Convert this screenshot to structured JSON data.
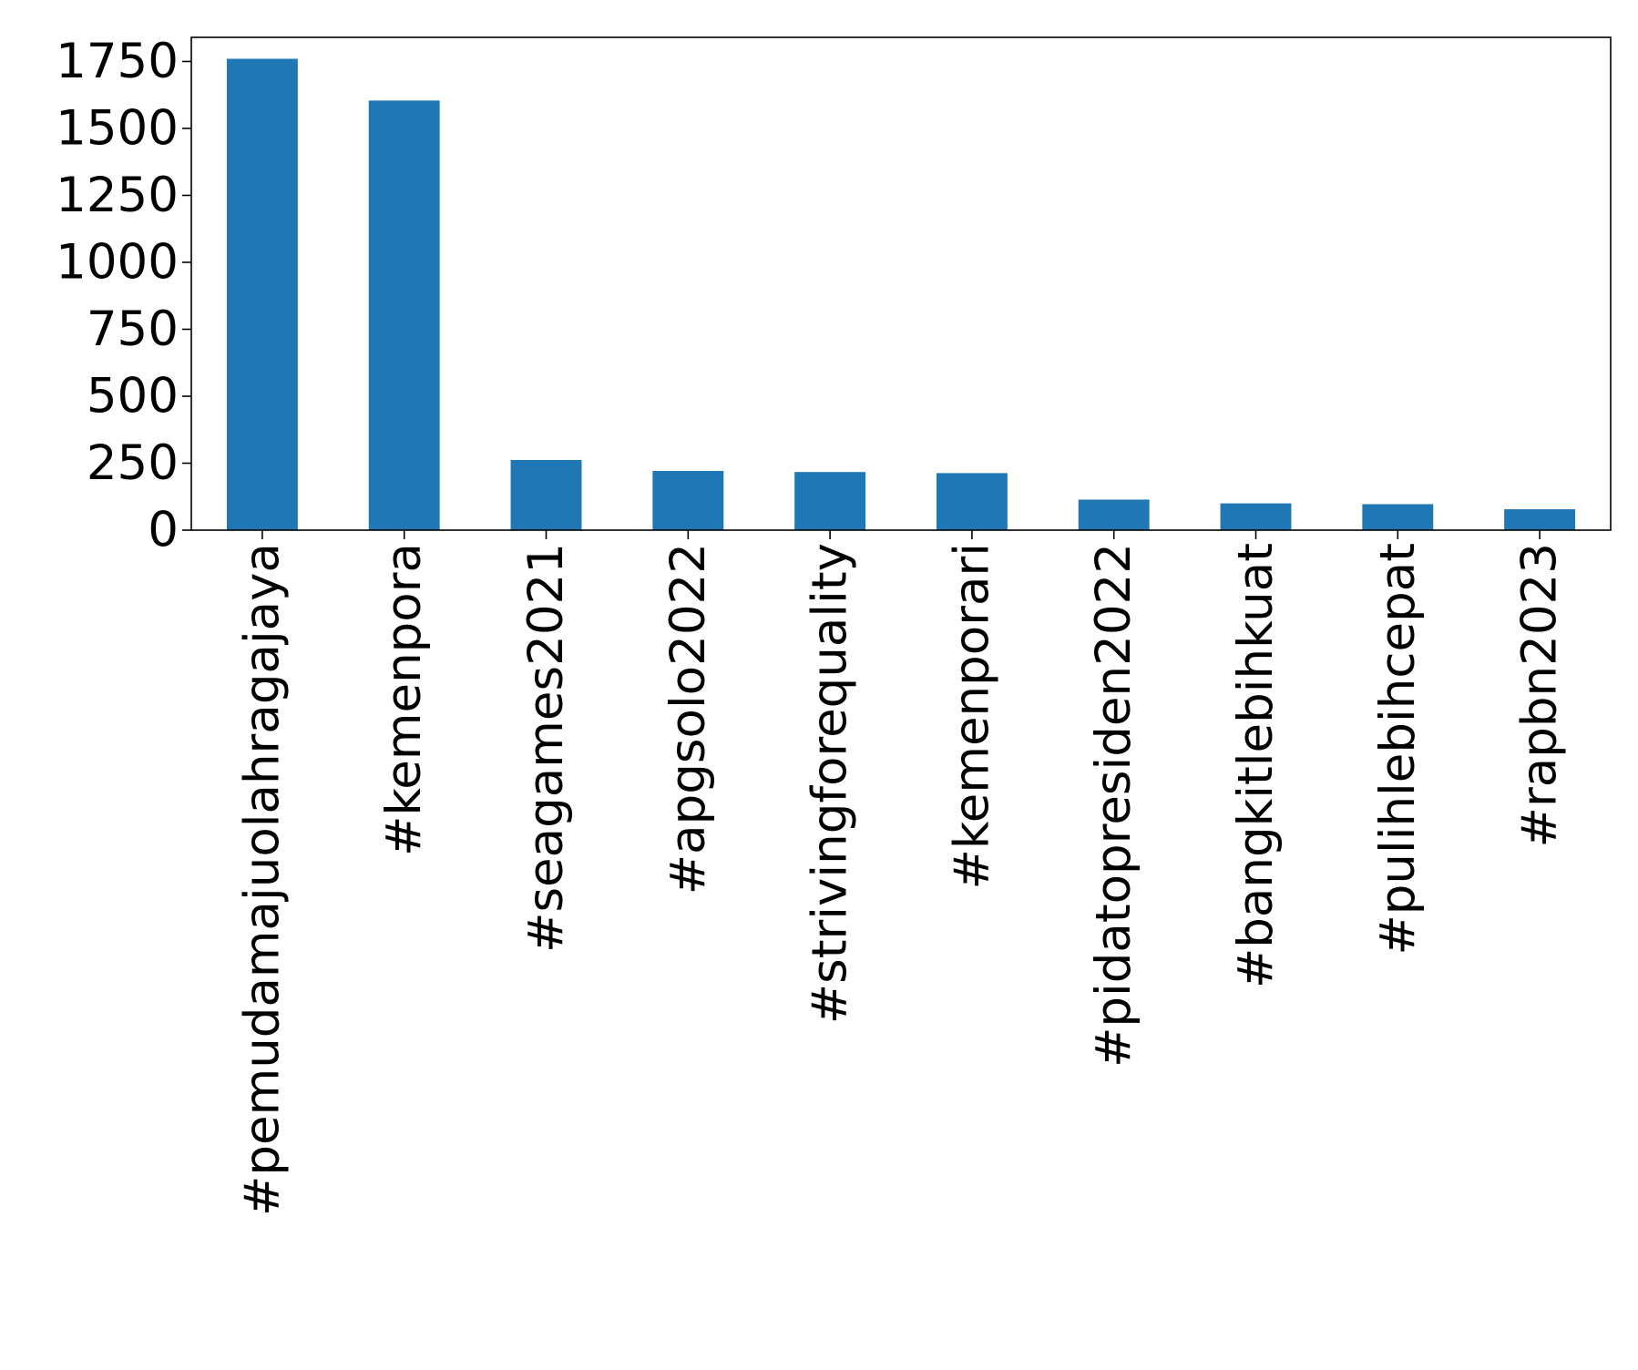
{
  "chart_data": {
    "type": "bar",
    "title": "",
    "xlabel": "",
    "ylabel": "",
    "categories": [
      "#pemudamajuolahragajaya",
      "#kemenpora",
      "#seagames2021",
      "#apgsolo2022",
      "#strivingforequality",
      "#kemenporari",
      "#pidatopresiden2022",
      "#bangkitlebihkuat",
      "#pulihlebihcepat",
      "#rapbn2023"
    ],
    "values": [
      1760,
      1604,
      262,
      221,
      217,
      213,
      114,
      100,
      97,
      78
    ],
    "ylim": [
      0,
      1840
    ],
    "yticks": [
      0,
      250,
      500,
      750,
      1000,
      1250,
      1500,
      1750
    ],
    "bar_color": "#1f77b4",
    "grid": false,
    "legend": "none"
  }
}
